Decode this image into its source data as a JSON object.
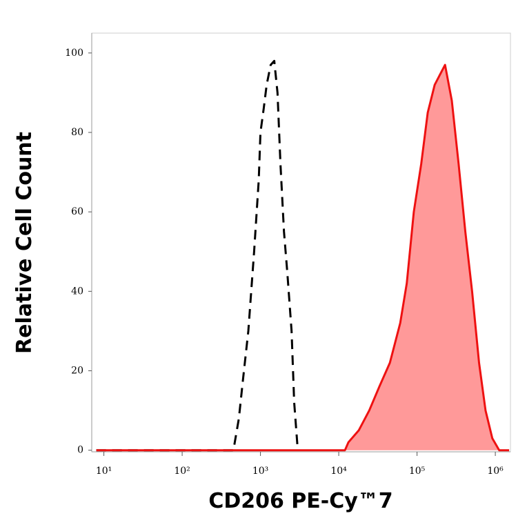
{
  "chart_data": {
    "type": "histogram-overlay",
    "x_label": "CD206 PE-Cy™7",
    "y_label": "Relative Cell Count",
    "xscale": "log",
    "xlim": [
      7,
      1560000
    ],
    "ylim": [
      -0.4,
      105
    ],
    "xticks": [
      {
        "value": 10,
        "label": "10¹"
      },
      {
        "value": 100,
        "label": "10²"
      },
      {
        "value": 1000,
        "label": "10³"
      },
      {
        "value": 10000,
        "label": "10⁴"
      },
      {
        "value": 100000,
        "label": "10⁵"
      },
      {
        "value": 1000000,
        "label": "10⁶"
      }
    ],
    "yticks": [
      0,
      20,
      40,
      60,
      80,
      100
    ],
    "series": [
      {
        "color": "#000000",
        "dashed": true,
        "x": [
          8,
          452,
          530,
          600,
          700,
          830,
          950,
          1000,
          1100,
          1200,
          1350,
          1500,
          1650,
          1800,
          2000,
          2200,
          2500,
          2700,
          3000
        ],
        "values": [
          0,
          0,
          8,
          18,
          30,
          50,
          68,
          80,
          86,
          92,
          97,
          98,
          90,
          72,
          55,
          45,
          30,
          12,
          0
        ]
      },
      {
        "color": "#ee1111",
        "fill": "#ff9999",
        "dashed": false,
        "x": [
          8,
          12000,
          13300,
          18000,
          24500,
          33000,
          45000,
          61000,
          74000,
          91000,
          113000,
          137000,
          168000,
          228000,
          278000,
          340000,
          414000,
          505000,
          620000,
          750000,
          915000,
          1120000,
          1500000
        ],
        "values": [
          0,
          0,
          2,
          5,
          10,
          16,
          22,
          32,
          42,
          60,
          72,
          85,
          92,
          97,
          88,
          72,
          55,
          40,
          22,
          10,
          3,
          0,
          0
        ]
      }
    ]
  }
}
